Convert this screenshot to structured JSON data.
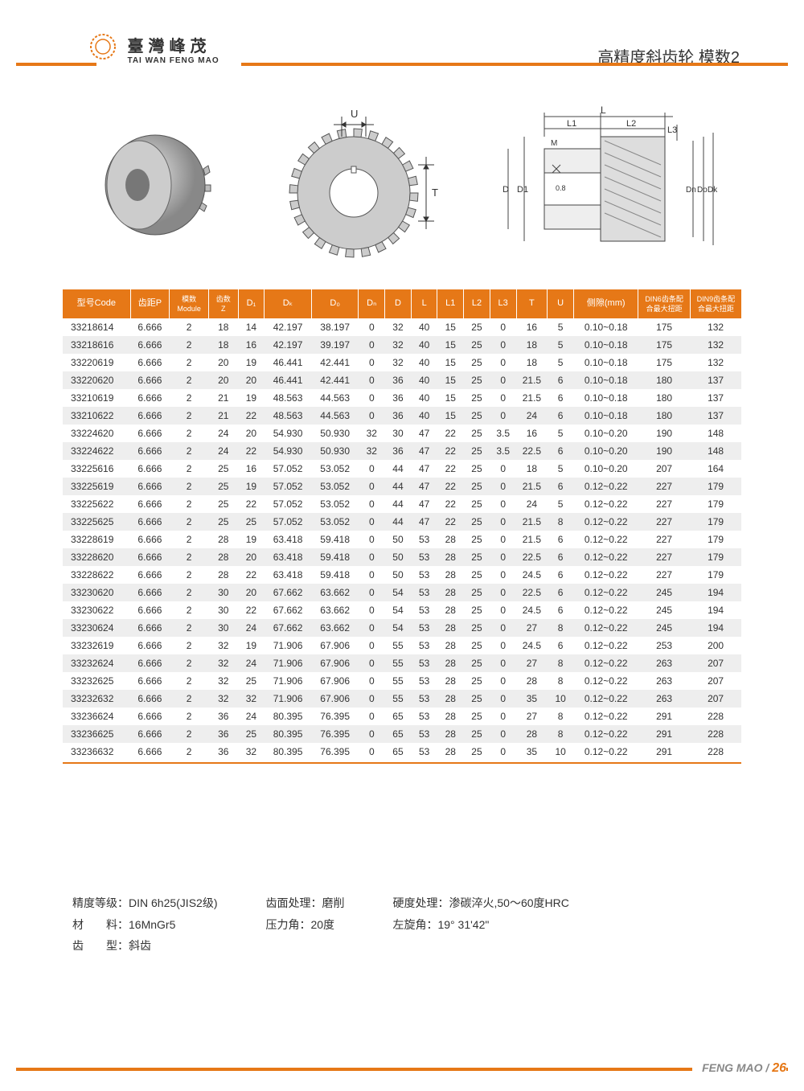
{
  "brand": {
    "cn": "臺灣峰茂",
    "en": "TAI WAN FENG MAO"
  },
  "page_title": "高精度斜齿轮 模数2",
  "diagram_labels": {
    "U": "U",
    "T": "T",
    "L": "L",
    "L1": "L1",
    "L2": "L2",
    "L3": "L3",
    "M": "M",
    "D": "D",
    "D1": "D1",
    "Dn": "Dn",
    "Do": "Do",
    "Dk": "Dk",
    "angle": "0.8"
  },
  "table": {
    "columns": [
      "型号Code",
      "齿距P",
      "模数\nModule",
      "齿数\nZ",
      "D₁",
      "Dₖ",
      "D₀",
      "Dₙ",
      "D",
      "L",
      "L1",
      "L2",
      "L3",
      "T",
      "U",
      "侧隙(mm)",
      "DIN6齿条配\n合最大扭距",
      "DIN9齿条配\n合最大扭距"
    ],
    "col_widths": [
      "80",
      "44",
      "44",
      "32",
      "28",
      "54",
      "54",
      "28",
      "28",
      "28",
      "28",
      "28",
      "28",
      "34",
      "28",
      "76",
      "60",
      "60"
    ],
    "rows": [
      [
        "33218614",
        "6.666",
        "2",
        "18",
        "14",
        "42.197",
        "38.197",
        "0",
        "32",
        "40",
        "15",
        "25",
        "0",
        "16",
        "5",
        "0.10~0.18",
        "175",
        "132"
      ],
      [
        "33218616",
        "6.666",
        "2",
        "18",
        "16",
        "42.197",
        "39.197",
        "0",
        "32",
        "40",
        "15",
        "25",
        "0",
        "18",
        "5",
        "0.10~0.18",
        "175",
        "132"
      ],
      [
        "33220619",
        "6.666",
        "2",
        "20",
        "19",
        "46.441",
        "42.441",
        "0",
        "32",
        "40",
        "15",
        "25",
        "0",
        "18",
        "5",
        "0.10~0.18",
        "175",
        "132"
      ],
      [
        "33220620",
        "6.666",
        "2",
        "20",
        "20",
        "46.441",
        "42.441",
        "0",
        "36",
        "40",
        "15",
        "25",
        "0",
        "21.5",
        "6",
        "0.10~0.18",
        "180",
        "137"
      ],
      [
        "33210619",
        "6.666",
        "2",
        "21",
        "19",
        "48.563",
        "44.563",
        "0",
        "36",
        "40",
        "15",
        "25",
        "0",
        "21.5",
        "6",
        "0.10~0.18",
        "180",
        "137"
      ],
      [
        "33210622",
        "6.666",
        "2",
        "21",
        "22",
        "48.563",
        "44.563",
        "0",
        "36",
        "40",
        "15",
        "25",
        "0",
        "24",
        "6",
        "0.10~0.18",
        "180",
        "137"
      ],
      [
        "33224620",
        "6.666",
        "2",
        "24",
        "20",
        "54.930",
        "50.930",
        "32",
        "30",
        "47",
        "22",
        "25",
        "3.5",
        "16",
        "5",
        "0.10~0.20",
        "190",
        "148"
      ],
      [
        "33224622",
        "6.666",
        "2",
        "24",
        "22",
        "54.930",
        "50.930",
        "32",
        "36",
        "47",
        "22",
        "25",
        "3.5",
        "22.5",
        "6",
        "0.10~0.20",
        "190",
        "148"
      ],
      [
        "33225616",
        "6.666",
        "2",
        "25",
        "16",
        "57.052",
        "53.052",
        "0",
        "44",
        "47",
        "22",
        "25",
        "0",
        "18",
        "5",
        "0.10~0.20",
        "207",
        "164"
      ],
      [
        "33225619",
        "6.666",
        "2",
        "25",
        "19",
        "57.052",
        "53.052",
        "0",
        "44",
        "47",
        "22",
        "25",
        "0",
        "21.5",
        "6",
        "0.12~0.22",
        "227",
        "179"
      ],
      [
        "33225622",
        "6.666",
        "2",
        "25",
        "22",
        "57.052",
        "53.052",
        "0",
        "44",
        "47",
        "22",
        "25",
        "0",
        "24",
        "5",
        "0.12~0.22",
        "227",
        "179"
      ],
      [
        "33225625",
        "6.666",
        "2",
        "25",
        "25",
        "57.052",
        "53.052",
        "0",
        "44",
        "47",
        "22",
        "25",
        "0",
        "21.5",
        "8",
        "0.12~0.22",
        "227",
        "179"
      ],
      [
        "33228619",
        "6.666",
        "2",
        "28",
        "19",
        "63.418",
        "59.418",
        "0",
        "50",
        "53",
        "28",
        "25",
        "0",
        "21.5",
        "6",
        "0.12~0.22",
        "227",
        "179"
      ],
      [
        "33228620",
        "6.666",
        "2",
        "28",
        "20",
        "63.418",
        "59.418",
        "0",
        "50",
        "53",
        "28",
        "25",
        "0",
        "22.5",
        "6",
        "0.12~0.22",
        "227",
        "179"
      ],
      [
        "33228622",
        "6.666",
        "2",
        "28",
        "22",
        "63.418",
        "59.418",
        "0",
        "50",
        "53",
        "28",
        "25",
        "0",
        "24.5",
        "6",
        "0.12~0.22",
        "227",
        "179"
      ],
      [
        "33230620",
        "6.666",
        "2",
        "30",
        "20",
        "67.662",
        "63.662",
        "0",
        "54",
        "53",
        "28",
        "25",
        "0",
        "22.5",
        "6",
        "0.12~0.22",
        "245",
        "194"
      ],
      [
        "33230622",
        "6.666",
        "2",
        "30",
        "22",
        "67.662",
        "63.662",
        "0",
        "54",
        "53",
        "28",
        "25",
        "0",
        "24.5",
        "6",
        "0.12~0.22",
        "245",
        "194"
      ],
      [
        "33230624",
        "6.666",
        "2",
        "30",
        "24",
        "67.662",
        "63.662",
        "0",
        "54",
        "53",
        "28",
        "25",
        "0",
        "27",
        "8",
        "0.12~0.22",
        "245",
        "194"
      ],
      [
        "33232619",
        "6.666",
        "2",
        "32",
        "19",
        "71.906",
        "67.906",
        "0",
        "55",
        "53",
        "28",
        "25",
        "0",
        "24.5",
        "6",
        "0.12~0.22",
        "253",
        "200"
      ],
      [
        "33232624",
        "6.666",
        "2",
        "32",
        "24",
        "71.906",
        "67.906",
        "0",
        "55",
        "53",
        "28",
        "25",
        "0",
        "27",
        "8",
        "0.12~0.22",
        "263",
        "207"
      ],
      [
        "33232625",
        "6.666",
        "2",
        "32",
        "25",
        "71.906",
        "67.906",
        "0",
        "55",
        "53",
        "28",
        "25",
        "0",
        "28",
        "8",
        "0.12~0.22",
        "263",
        "207"
      ],
      [
        "33232632",
        "6.666",
        "2",
        "32",
        "32",
        "71.906",
        "67.906",
        "0",
        "55",
        "53",
        "28",
        "25",
        "0",
        "35",
        "10",
        "0.12~0.22",
        "263",
        "207"
      ],
      [
        "33236624",
        "6.666",
        "2",
        "36",
        "24",
        "80.395",
        "76.395",
        "0",
        "65",
        "53",
        "28",
        "25",
        "0",
        "27",
        "8",
        "0.12~0.22",
        "291",
        "228"
      ],
      [
        "33236625",
        "6.666",
        "2",
        "36",
        "25",
        "80.395",
        "76.395",
        "0",
        "65",
        "53",
        "28",
        "25",
        "0",
        "28",
        "8",
        "0.12~0.22",
        "291",
        "228"
      ],
      [
        "33236632",
        "6.666",
        "2",
        "36",
        "32",
        "80.395",
        "76.395",
        "0",
        "65",
        "53",
        "28",
        "25",
        "0",
        "35",
        "10",
        "0.12~0.22",
        "291",
        "228"
      ]
    ]
  },
  "specs": {
    "col1": [
      {
        "label": "精度等级：",
        "value": "DIN 6h25(JIS2级)"
      },
      {
        "label": "材　　料：",
        "value": "16MnGr5"
      },
      {
        "label": "齿　　型：",
        "value": "斜齿"
      }
    ],
    "col2": [
      {
        "label": "齿面处理：",
        "value": "磨削"
      },
      {
        "label": "压力角：",
        "value": "20度"
      }
    ],
    "col3": [
      {
        "label": "硬度处理：",
        "value": "渗碳淬火,50〜60度HRC"
      },
      {
        "label": "左旋角：",
        "value": "19° 31'42\""
      }
    ]
  },
  "footer": {
    "brand": "FENG MAO",
    "sep": " / ",
    "page": "26"
  },
  "colors": {
    "orange": "#e67817",
    "row_alt": "#eeeeee",
    "text": "#333"
  }
}
